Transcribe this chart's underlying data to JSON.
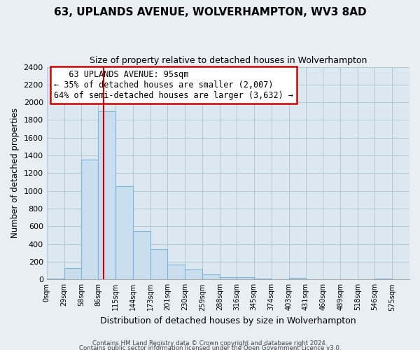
{
  "title": "63, UPLANDS AVENUE, WOLVERHAMPTON, WV3 8AD",
  "subtitle": "Size of property relative to detached houses in Wolverhampton",
  "xlabel": "Distribution of detached houses by size in Wolverhampton",
  "ylabel": "Number of detached properties",
  "bin_labels": [
    "0sqm",
    "29sqm",
    "58sqm",
    "86sqm",
    "115sqm",
    "144sqm",
    "173sqm",
    "201sqm",
    "230sqm",
    "259sqm",
    "288sqm",
    "316sqm",
    "345sqm",
    "374sqm",
    "403sqm",
    "431sqm",
    "460sqm",
    "489sqm",
    "518sqm",
    "546sqm",
    "575sqm"
  ],
  "bar_heights": [
    10,
    125,
    1350,
    1900,
    1050,
    550,
    340,
    165,
    110,
    60,
    30,
    25,
    10,
    5,
    15,
    3,
    2,
    0,
    0,
    10,
    0
  ],
  "bar_color": "#c9dff0",
  "bar_edge_color": "#7eb4d4",
  "property_line_x": 95,
  "property_line_color": "#cc0000",
  "annotation_title": "63 UPLANDS AVENUE: 95sqm",
  "annotation_line1": "← 35% of detached houses are smaller (2,007)",
  "annotation_line2": "64% of semi-detached houses are larger (3,632) →",
  "annotation_box_color": "#ffffff",
  "annotation_box_edge": "#cc0000",
  "ylim": [
    0,
    2400
  ],
  "yticks": [
    0,
    200,
    400,
    600,
    800,
    1000,
    1200,
    1400,
    1600,
    1800,
    2000,
    2200,
    2400
  ],
  "footer1": "Contains HM Land Registry data © Crown copyright and database right 2024.",
  "footer2": "Contains public sector information licensed under the Open Government Licence v3.0.",
  "bg_color": "#e8eef4",
  "plot_bg_color": "#dce8f0",
  "grid_color": "#b0c8d8",
  "left_edges": [
    0,
    29,
    58,
    86,
    115,
    144,
    173,
    201,
    230,
    259,
    288,
    316,
    345,
    374,
    403,
    431,
    460,
    489,
    518,
    546,
    575
  ],
  "xlim_max": 604
}
